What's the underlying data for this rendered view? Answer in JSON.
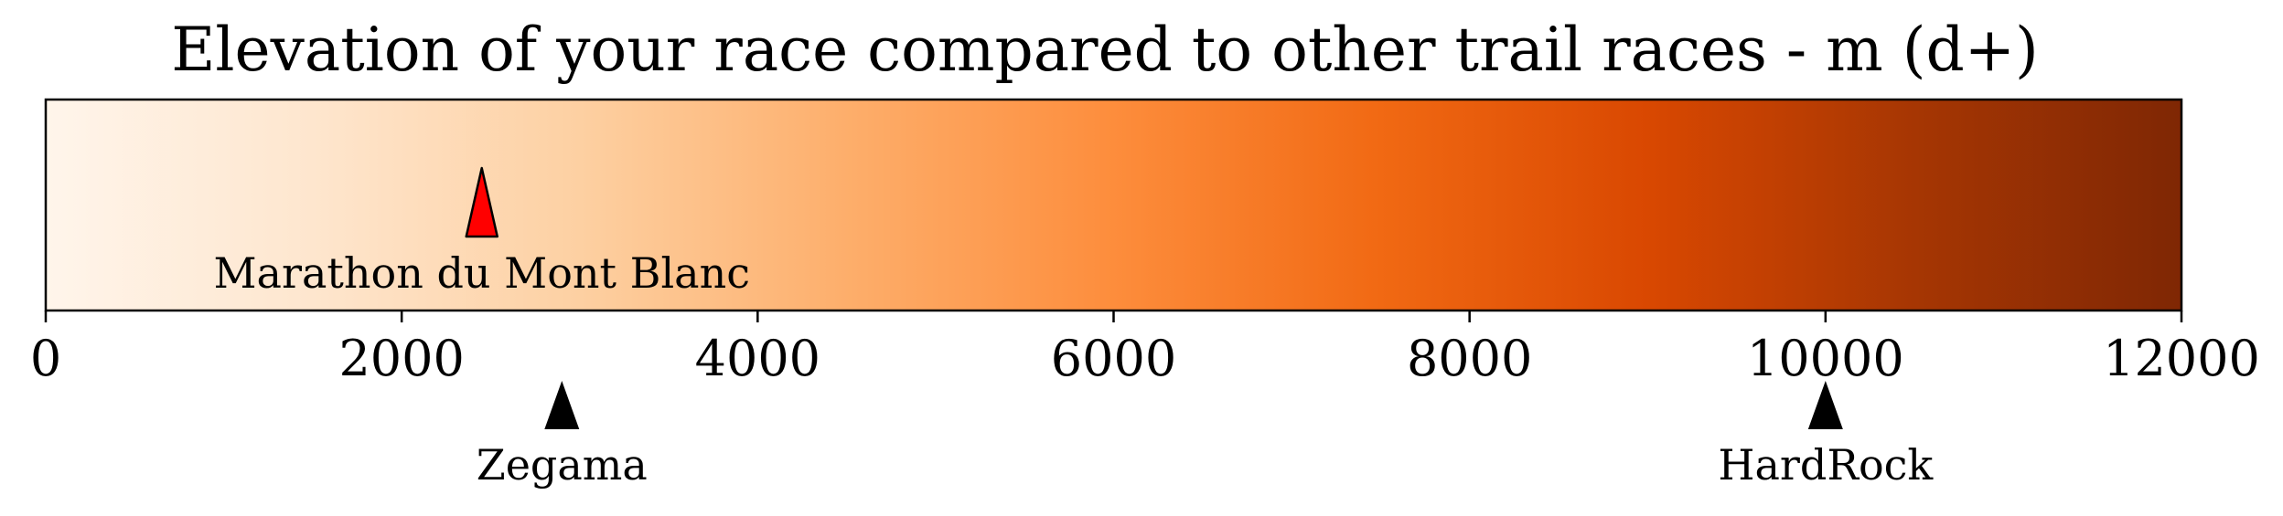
{
  "chart_data": {
    "type": "colorbar",
    "title": "Elevation of your race compared to other trail races - m (d+)",
    "xlim": [
      0,
      12000
    ],
    "ticks": [
      0,
      2000,
      4000,
      6000,
      8000,
      10000,
      12000
    ],
    "tick_labels": [
      "0",
      "2000",
      "4000",
      "6000",
      "8000",
      "10000",
      "12000"
    ],
    "colormap": {
      "name": "Oranges",
      "stops": [
        "#fff5eb",
        "#fee6ce",
        "#fdd0a2",
        "#fdae6b",
        "#fd8d3c",
        "#f16913",
        "#d94801",
        "#a63603",
        "#7f2704"
      ]
    },
    "your_race": {
      "name": "Marathon du Mont Blanc",
      "value": 2450,
      "marker_color": "#ff0000"
    },
    "other_races": [
      {
        "name": "Zegama",
        "value": 2900,
        "marker_color": "#000000"
      },
      {
        "name": "HardRock",
        "value": 10000,
        "marker_color": "#000000"
      }
    ]
  }
}
